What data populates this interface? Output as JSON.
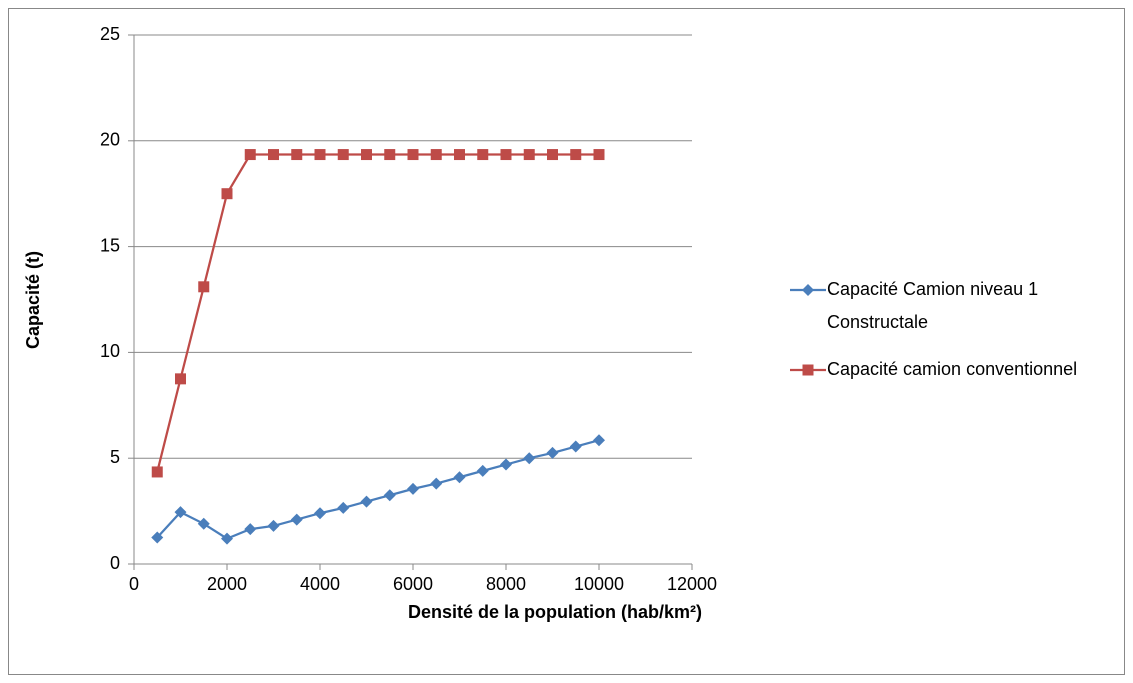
{
  "chart_data": {
    "type": "line",
    "x_label": "Densité de la population (hab/km²)",
    "y_label": "Capacité (t)",
    "x": [
      500,
      1000,
      1500,
      2000,
      2500,
      3000,
      3500,
      4000,
      4500,
      5000,
      5500,
      6000,
      6500,
      7000,
      7500,
      8000,
      8500,
      9000,
      9500,
      10000
    ],
    "series": [
      {
        "name": "Capacité Camion niveau 1 Constructale",
        "color": "#4a7ebb",
        "marker": "diamond",
        "values": [
          1.25,
          2.45,
          1.9,
          1.2,
          1.65,
          1.8,
          2.1,
          2.4,
          2.65,
          2.95,
          3.25,
          3.55,
          3.8,
          4.1,
          4.4,
          4.7,
          5.0,
          5.25,
          5.55,
          5.85
        ]
      },
      {
        "name": "Capacité camion conventionnel",
        "color": "#be4b48",
        "marker": "square",
        "values": [
          4.35,
          8.75,
          13.1,
          17.5,
          19.35,
          19.35,
          19.35,
          19.35,
          19.35,
          19.35,
          19.35,
          19.35,
          19.35,
          19.35,
          19.35,
          19.35,
          19.35,
          19.35,
          19.35,
          19.35
        ]
      }
    ],
    "xlim": [
      0,
      12000
    ],
    "xticks": [
      0,
      2000,
      4000,
      6000,
      8000,
      10000,
      12000
    ],
    "ylim": [
      0,
      25
    ],
    "yticks": [
      0,
      5,
      10,
      15,
      20,
      25
    ],
    "grid": true,
    "legend": "right"
  }
}
